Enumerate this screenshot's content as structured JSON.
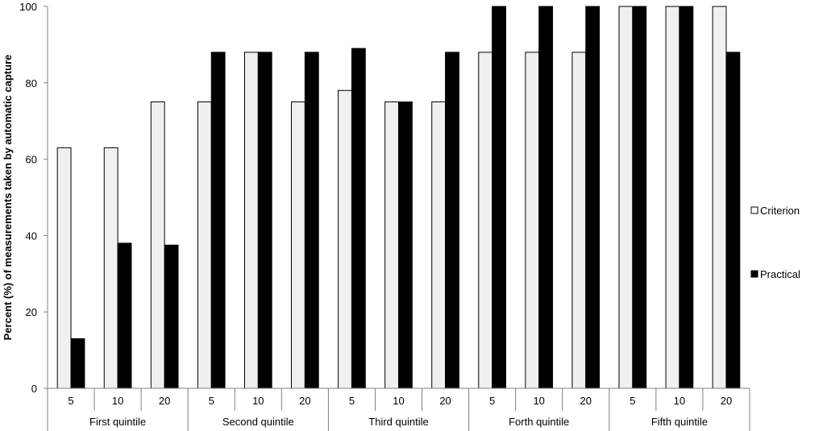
{
  "chart_data": {
    "type": "bar",
    "ylabel": "Percent (%) of measurements taken by automatic capture",
    "ylim": [
      0,
      100
    ],
    "yticks": [
      0,
      20,
      40,
      60,
      80,
      100
    ],
    "grid": false,
    "legend_position": "right",
    "groups": [
      {
        "label": "First quintile",
        "categories": [
          "5",
          "10",
          "20"
        ]
      },
      {
        "label": "Second quintile",
        "categories": [
          "5",
          "10",
          "20"
        ]
      },
      {
        "label": "Third quintile",
        "categories": [
          "5",
          "10",
          "20"
        ]
      },
      {
        "label": "Forth quintile",
        "categories": [
          "5",
          "10",
          "20"
        ]
      },
      {
        "label": "Fifth quintile",
        "categories": [
          "5",
          "10",
          "20"
        ]
      }
    ],
    "series": [
      {
        "name": "Criterion",
        "color": "#f0f0f0",
        "values": [
          63,
          63,
          75,
          75,
          88,
          75,
          78,
          75,
          75,
          88,
          88,
          88,
          100,
          100,
          100
        ]
      },
      {
        "name": "Practical",
        "color": "#000000",
        "values": [
          13,
          38,
          37.5,
          88,
          88,
          88,
          89,
          75,
          88,
          100,
          100,
          100,
          100,
          100,
          88
        ]
      }
    ]
  }
}
